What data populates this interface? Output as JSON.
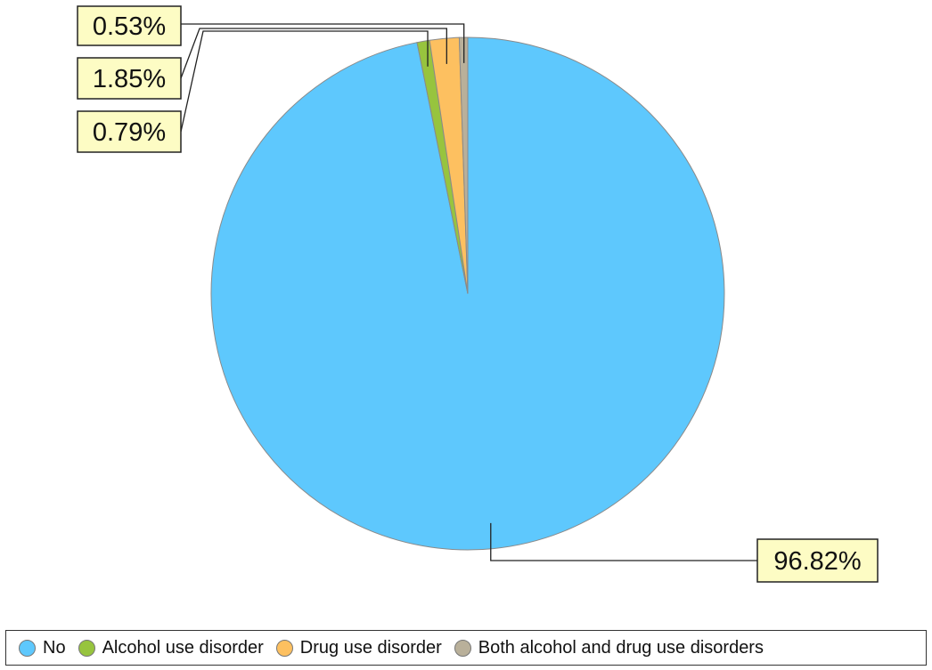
{
  "chart_data": {
    "type": "pie",
    "categories": [
      "No",
      "Alcohol use disorder",
      "Drug use disorder",
      "Both alcohol and drug use disorders"
    ],
    "values": [
      96.82,
      0.79,
      1.85,
      0.53
    ],
    "value_labels": [
      "96.82%",
      "0.79%",
      "1.85%",
      "0.53%"
    ],
    "colors": [
      "#5ec8fd",
      "#97c43e",
      "#fdc060",
      "#b9b09a"
    ],
    "start_angle_deg": 0,
    "direction": "clockwise",
    "legend_position": "bottom",
    "title": ""
  }
}
